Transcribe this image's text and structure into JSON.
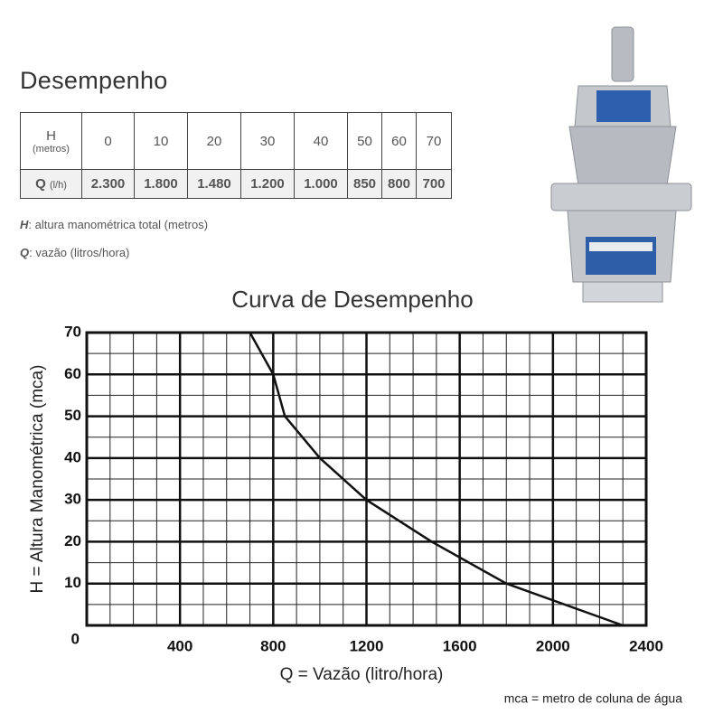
{
  "heading": "Desempenho",
  "table": {
    "rows": [
      {
        "label": "H",
        "unit": "(metros)",
        "cells": [
          "0",
          "10",
          "20",
          "30",
          "40",
          "50",
          "60",
          "70"
        ]
      },
      {
        "label": "Q",
        "unit": "(l/h)",
        "cells": [
          "2.300",
          "1.800",
          "1.480",
          "1.200",
          "1.000",
          "850",
          "800",
          "700"
        ]
      }
    ]
  },
  "notes": [
    {
      "symbol": "H",
      "text": ": altura manométrica total (metros)"
    },
    {
      "symbol": "Q",
      "text": ": vazão (litros/hora)"
    }
  ],
  "chart_data": {
    "type": "line",
    "title": "Curva de Desempenho",
    "xlabel": "Q = Vazão (litro/hora)",
    "ylabel": "H = Altura Manométrica (mca)",
    "footnote": "mca = metro de coluna de água",
    "x": [
      2300,
      1800,
      1480,
      1200,
      1000,
      850,
      800,
      700
    ],
    "values": [
      0,
      10,
      20,
      30,
      40,
      50,
      60,
      70
    ],
    "color": "#111111",
    "xlim": [
      0,
      2400
    ],
    "xticks": [
      400,
      800,
      1200,
      1600,
      2000,
      2400
    ],
    "ylim": [
      0,
      70
    ],
    "yticks": [
      0,
      10,
      20,
      30,
      40,
      50,
      60,
      70
    ],
    "grid": true
  }
}
